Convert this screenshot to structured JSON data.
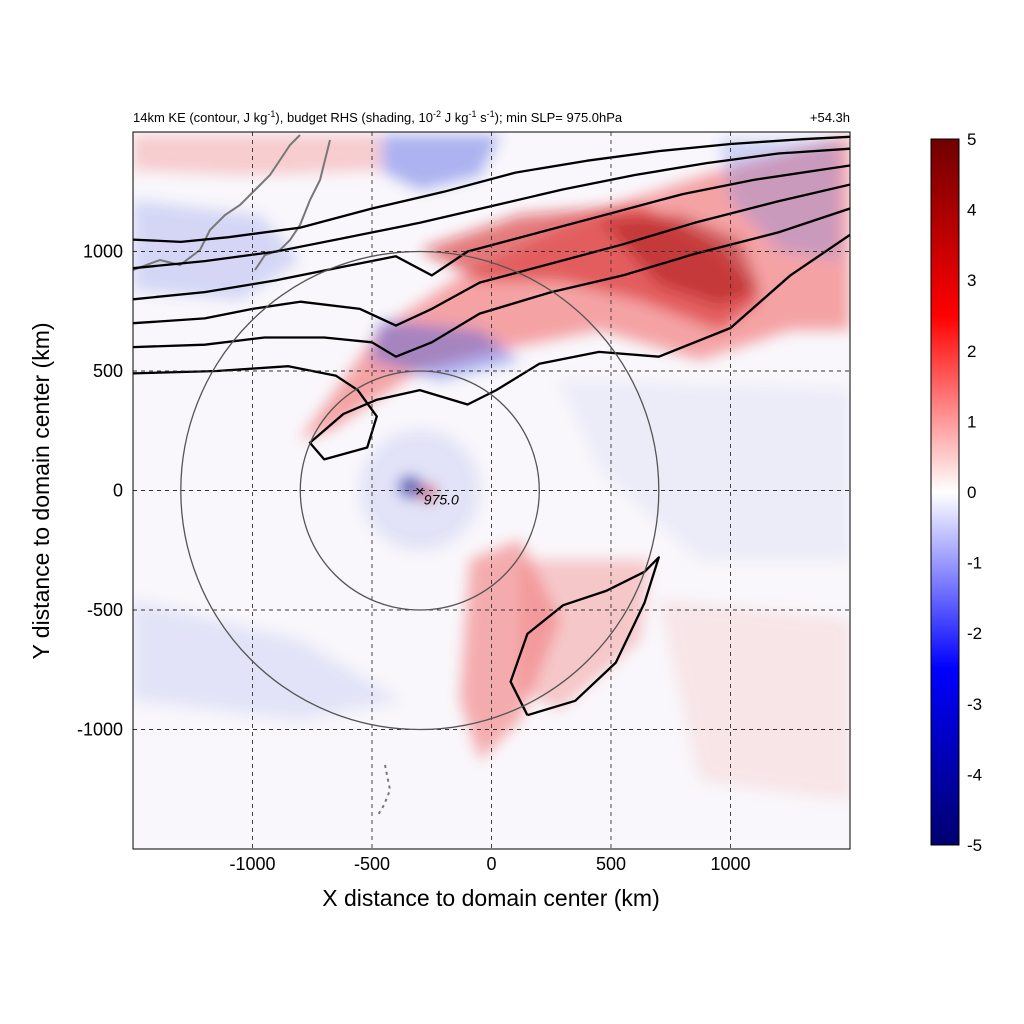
{
  "chart_data": {
    "type": "heatmap",
    "title": {
      "main": "14km KE (contour, J kg",
      "sup1": "-1",
      "mid1": "), budget RHS (shading, 10",
      "sup2": "-2",
      "mid2": " J kg",
      "sup3": "-1",
      "mid3": " s",
      "sup4": "-1",
      "tail": "); min SLP= 975.0hPa",
      "time": "+54.3h"
    },
    "xlabel": "X distance to domain center (km)",
    "ylabel": "Y distance to domain center (km)",
    "xlim": [
      -1500,
      1500
    ],
    "ylim": [
      -1500,
      1500
    ],
    "xticks": [
      -1000,
      -500,
      0,
      500,
      1000
    ],
    "yticks": [
      -1000,
      -500,
      0,
      500,
      1000
    ],
    "grid": true,
    "colorbar": {
      "range": [
        -5,
        5
      ],
      "ticks": [
        5,
        4,
        3,
        2,
        1,
        0,
        -1,
        -2,
        -3,
        -4,
        -5
      ],
      "colors": [
        "#00006e",
        "#0000ff",
        "#ffffff",
        "#ff0000",
        "#6e0000"
      ]
    },
    "storm_center": {
      "x": -300,
      "y": 0,
      "label": "975.0"
    },
    "range_circles_km": [
      500,
      1000
    ],
    "ke_contours": [
      [
        [
          -1500,
          1050
        ],
        [
          -1300,
          1040
        ],
        [
          -1100,
          1060
        ],
        [
          -800,
          1100
        ],
        [
          -500,
          1180
        ],
        [
          -200,
          1250
        ],
        [
          100,
          1330
        ],
        [
          400,
          1380
        ],
        [
          700,
          1420
        ],
        [
          1000,
          1450
        ],
        [
          1300,
          1470
        ],
        [
          1500,
          1480
        ]
      ],
      [
        [
          -1500,
          930
        ],
        [
          -1200,
          960
        ],
        [
          -900,
          1000
        ],
        [
          -600,
          1060
        ],
        [
          -300,
          1120
        ],
        [
          0,
          1190
        ],
        [
          300,
          1260
        ],
        [
          600,
          1320
        ],
        [
          900,
          1370
        ],
        [
          1200,
          1410
        ],
        [
          1500,
          1430
        ]
      ],
      [
        [
          -1500,
          800
        ],
        [
          -1200,
          830
        ],
        [
          -900,
          880
        ],
        [
          -600,
          940
        ],
        [
          -400,
          980
        ],
        [
          -250,
          900
        ],
        [
          -100,
          1000
        ],
        [
          200,
          1080
        ],
        [
          500,
          1160
        ],
        [
          800,
          1240
        ],
        [
          1100,
          1300
        ],
        [
          1500,
          1360
        ]
      ],
      [
        [
          -1500,
          700
        ],
        [
          -1200,
          720
        ],
        [
          -1000,
          760
        ],
        [
          -800,
          790
        ],
        [
          -550,
          760
        ],
        [
          -400,
          690
        ],
        [
          -250,
          760
        ],
        [
          -50,
          870
        ],
        [
          250,
          950
        ],
        [
          550,
          1030
        ],
        [
          850,
          1120
        ],
        [
          1200,
          1210
        ],
        [
          1500,
          1280
        ]
      ],
      [
        [
          -1500,
          600
        ],
        [
          -1200,
          610
        ],
        [
          -950,
          640
        ],
        [
          -700,
          640
        ],
        [
          -500,
          620
        ],
        [
          -400,
          560
        ],
        [
          -250,
          620
        ],
        [
          -50,
          740
        ],
        [
          250,
          830
        ],
        [
          550,
          900
        ],
        [
          850,
          990
        ],
        [
          1200,
          1080
        ],
        [
          1500,
          1180
        ]
      ],
      [
        [
          -1500,
          490
        ],
        [
          -1150,
          500
        ],
        [
          -850,
          520
        ],
        [
          -650,
          480
        ],
        [
          -560,
          420
        ],
        [
          -480,
          310
        ],
        [
          -520,
          180
        ],
        [
          -700,
          130
        ],
        [
          -760,
          200
        ],
        [
          -620,
          320
        ],
        [
          -480,
          380
        ],
        [
          -300,
          420
        ],
        [
          -100,
          360
        ],
        [
          20,
          420
        ],
        [
          200,
          530
        ],
        [
          450,
          580
        ],
        [
          700,
          560
        ],
        [
          1000,
          680
        ],
        [
          1250,
          900
        ],
        [
          1500,
          1070
        ]
      ],
      [
        [
          150,
          -940
        ],
        [
          350,
          -880
        ],
        [
          520,
          -720
        ],
        [
          640,
          -470
        ],
        [
          700,
          -280
        ],
        [
          640,
          -340
        ],
        [
          480,
          -420
        ],
        [
          300,
          -480
        ],
        [
          150,
          -600
        ],
        [
          80,
          -800
        ],
        [
          150,
          -940
        ]
      ]
    ]
  }
}
